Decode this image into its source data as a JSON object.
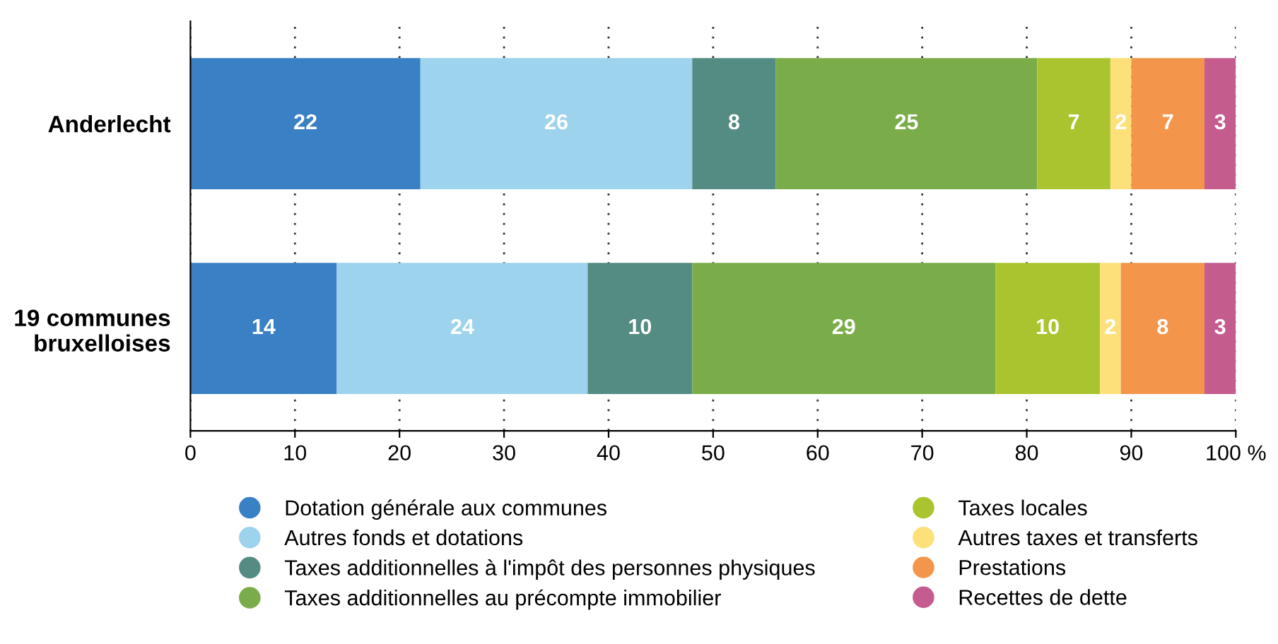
{
  "chart_data": {
    "type": "bar",
    "orientation": "horizontal",
    "stacked": true,
    "categories": [
      "Anderlecht",
      "19 communes\nbruxelloises"
    ],
    "series": [
      {
        "name": "Dotation générale aux communes",
        "color": "#3a80c5",
        "values": [
          22,
          14
        ]
      },
      {
        "name": "Autres fonds et dotations",
        "color": "#9dd3ec",
        "values": [
          26,
          24
        ]
      },
      {
        "name": "Taxes additionnelles à l'impôt des personnes physiques",
        "color": "#548b83",
        "values": [
          8,
          10
        ]
      },
      {
        "name": "Taxes additionnelles au précompte immobilier",
        "color": "#7aad4a",
        "values": [
          25,
          29
        ]
      },
      {
        "name": "Taxes locales",
        "color": "#a9c42e",
        "values": [
          7,
          10
        ]
      },
      {
        "name": "Autres taxes et transferts",
        "color": "#fde07a",
        "values": [
          2,
          2
        ]
      },
      {
        "name": "Prestations",
        "color": "#f3964b",
        "values": [
          7,
          8
        ]
      },
      {
        "name": "Recettes de dette",
        "color": "#c45c8e",
        "values": [
          3,
          3
        ]
      }
    ],
    "xlim": [
      0,
      100
    ],
    "xticks": [
      0,
      10,
      20,
      30,
      40,
      50,
      60,
      70,
      80,
      90,
      {
        "value": 100,
        "label": "100 %"
      }
    ],
    "grid": "x",
    "data_labels": true,
    "legend": "bottom"
  }
}
